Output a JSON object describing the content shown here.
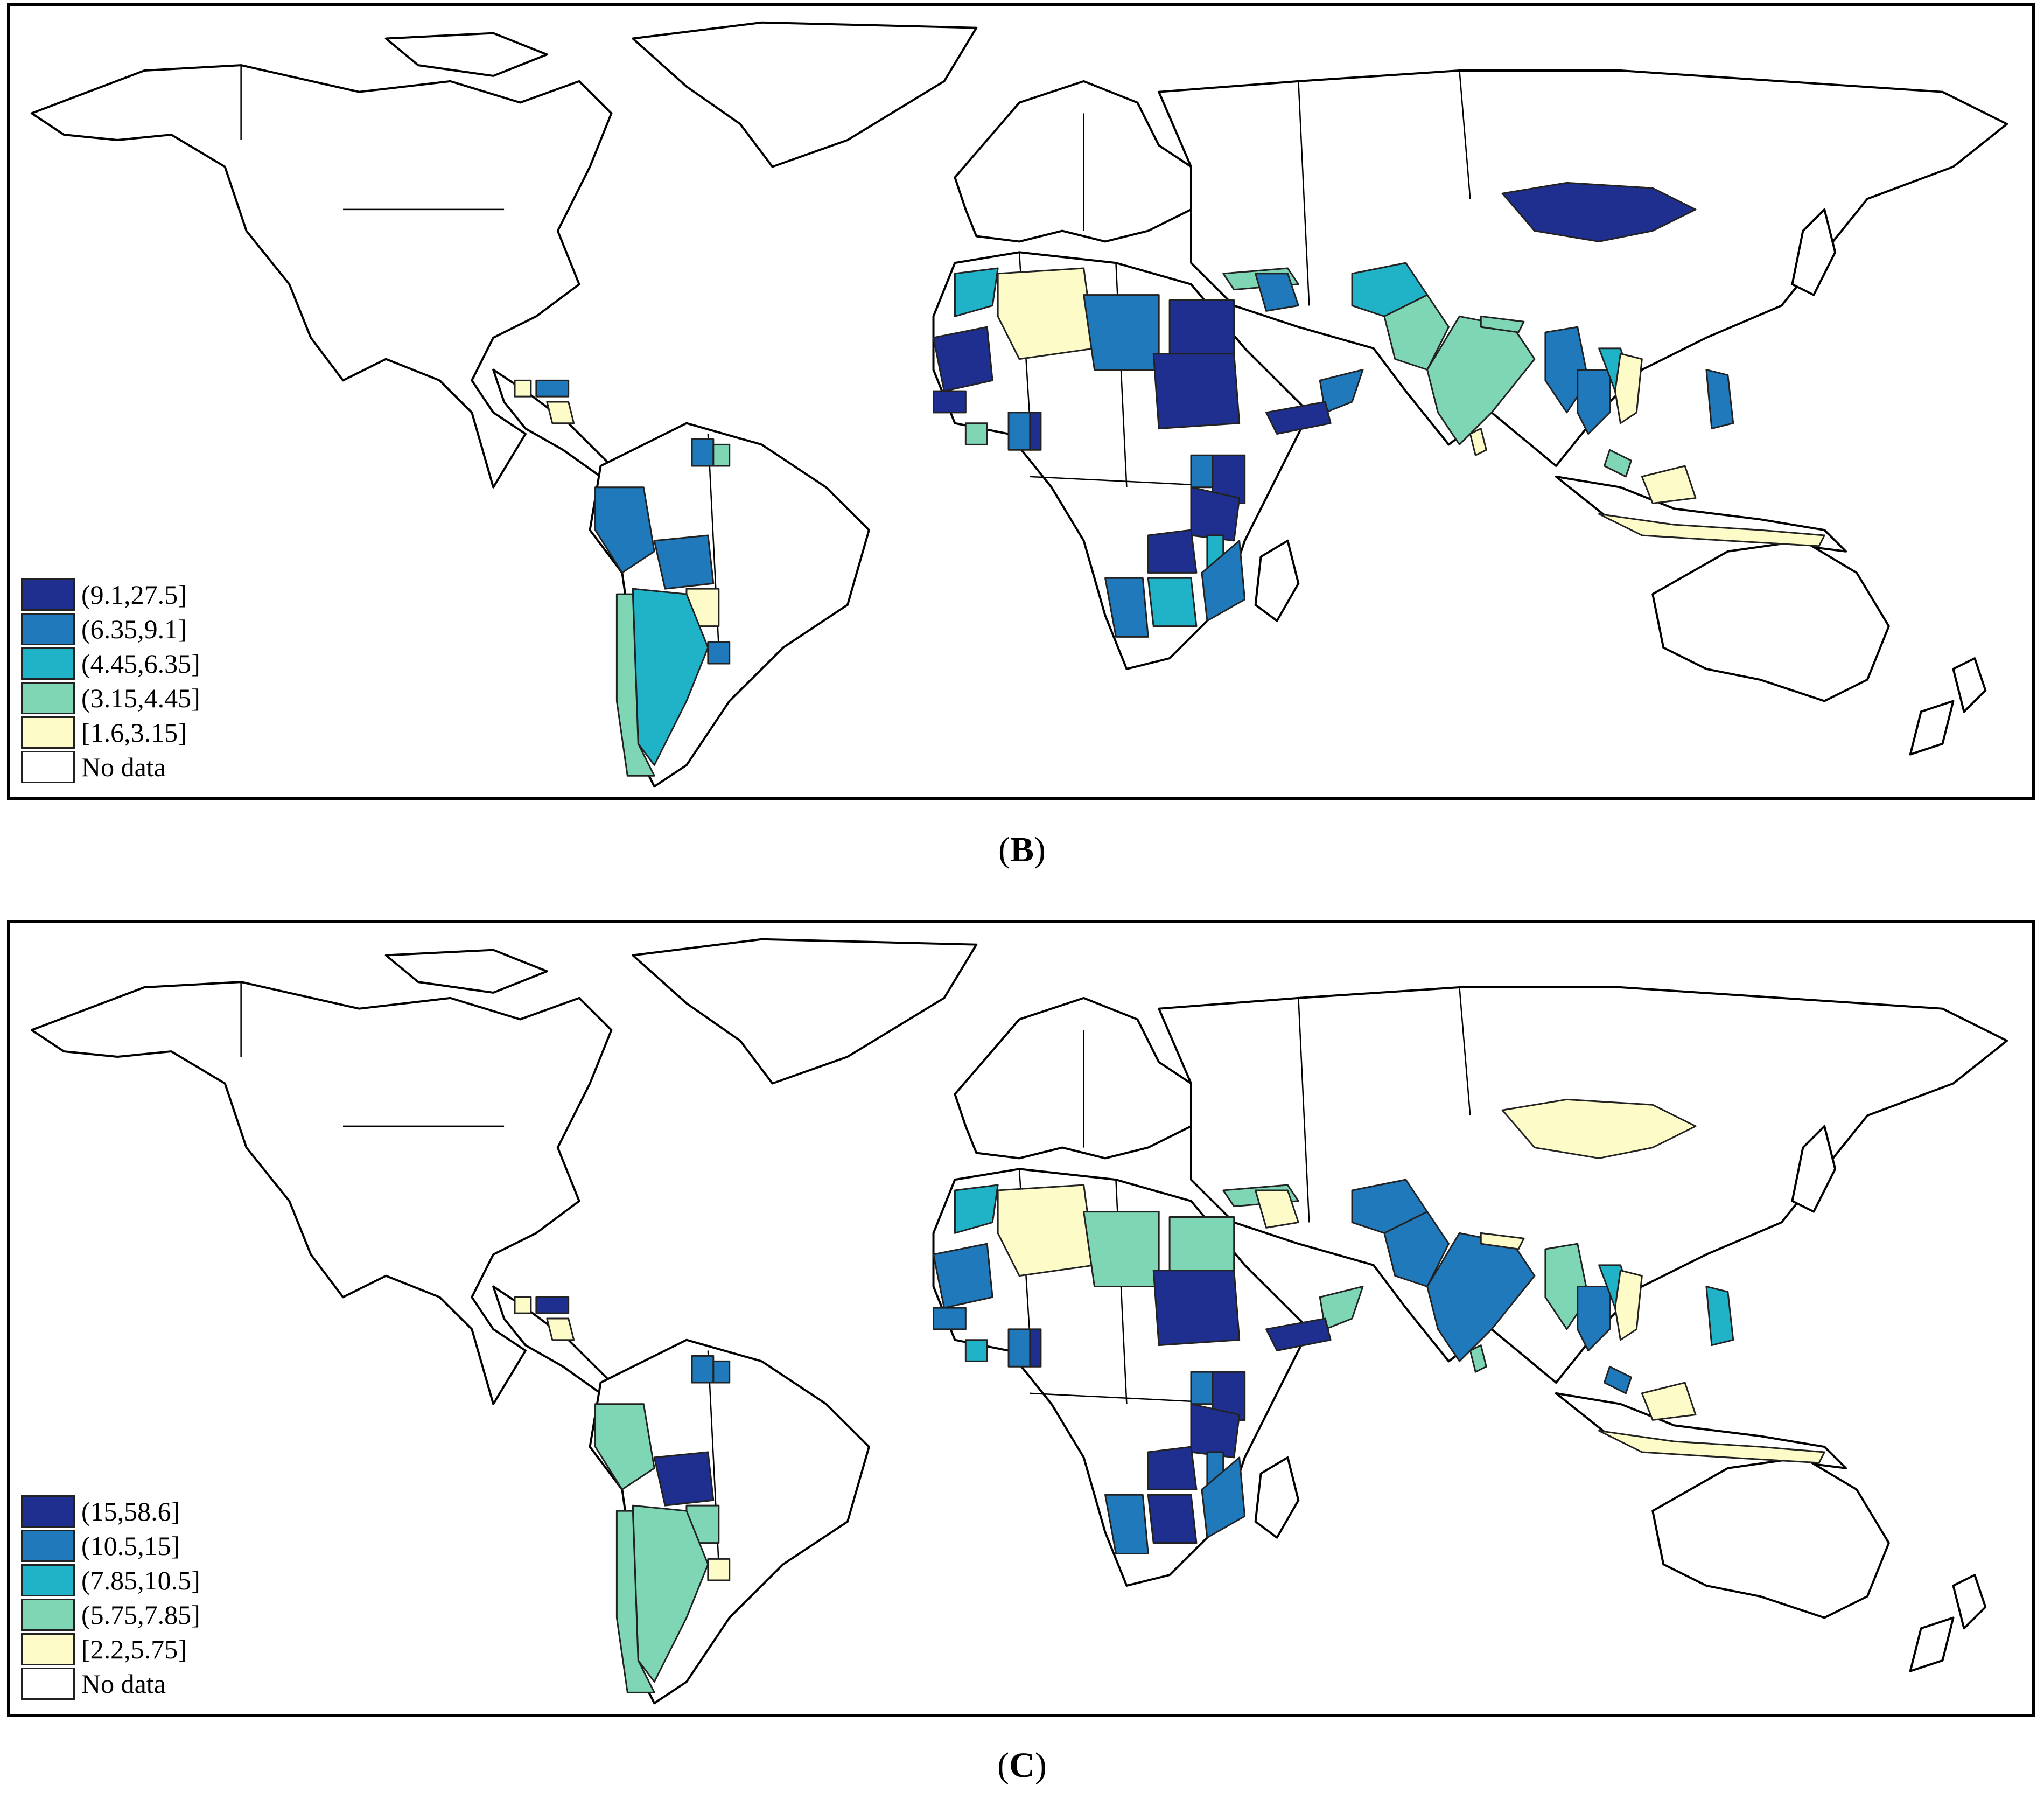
{
  "figure": {
    "panels": [
      {
        "id": "B",
        "caption_open": "(",
        "caption_letter": "B",
        "caption_close": ")",
        "legend": [
          {
            "label": "(9.1,27.5]",
            "color": "#1f2f8f"
          },
          {
            "label": "(6.35,9.1]",
            "color": "#1f79bb"
          },
          {
            "label": "(4.45,6.35]",
            "color": "#20b3c8"
          },
          {
            "label": "(3.15,4.45]",
            "color": "#7fd6b4"
          },
          {
            "label": "[1.6,3.15]",
            "color": "#fdfcc8"
          },
          {
            "label": "No data",
            "color": "#ffffff"
          }
        ]
      },
      {
        "id": "C",
        "caption_open": "(",
        "caption_letter": "C",
        "caption_close": ")",
        "legend": [
          {
            "label": "(15,58.6]",
            "color": "#1f2f8f"
          },
          {
            "label": "(10.5,15]",
            "color": "#1f79bb"
          },
          {
            "label": "(7.85,10.5]",
            "color": "#20b3c8"
          },
          {
            "label": "(5.75,7.85]",
            "color": "#7fd6b4"
          },
          {
            "label": "[2.2,5.75]",
            "color": "#fdfcc8"
          },
          {
            "label": "No data",
            "color": "#ffffff"
          }
        ]
      }
    ]
  },
  "colors": {
    "class1": "#1f2f8f",
    "class2": "#1f79bb",
    "class3": "#20b3c8",
    "class4": "#7fd6b4",
    "class5": "#fdfcc8",
    "nodata": "#ffffff"
  }
}
